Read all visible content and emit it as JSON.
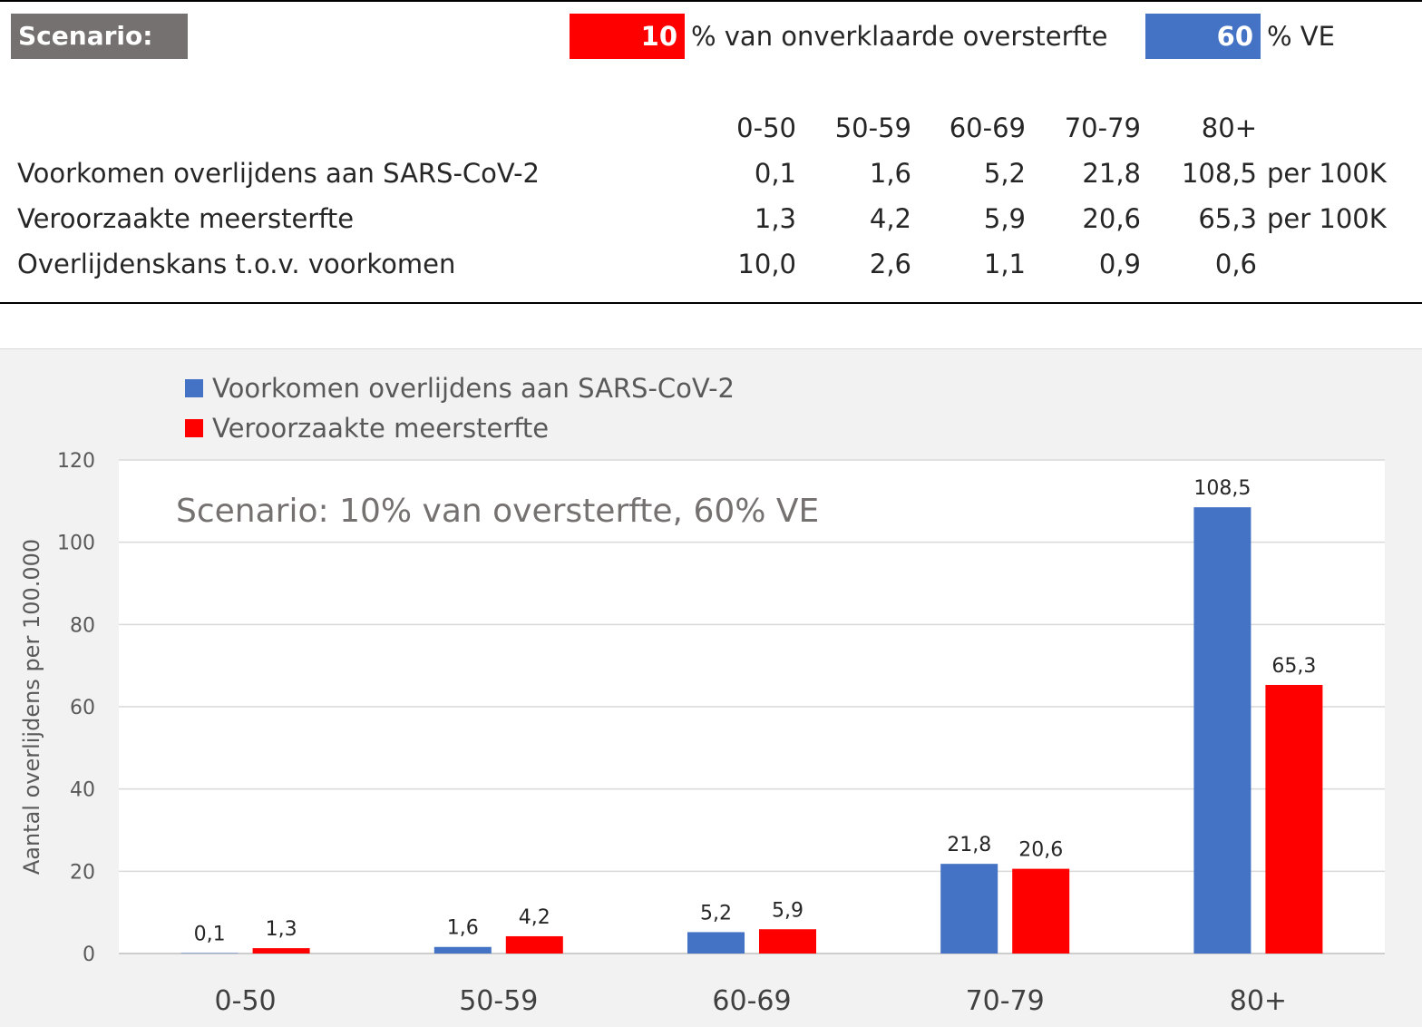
{
  "header": {
    "scenario_label": "Scenario:",
    "excess_pct_value": "10",
    "excess_pct_text": "% van onverklaarde oversterfte",
    "ve_value": "60",
    "ve_text": "% VE"
  },
  "colors": {
    "blue": "#4472c4",
    "red": "#ff0000",
    "badge": "#767171"
  },
  "table": {
    "columns": [
      "0-50",
      "50-59",
      "60-69",
      "70-79",
      "80+"
    ],
    "rows": [
      {
        "label": "Voorkomen overlijdens aan SARS-CoV-2",
        "values": [
          "0,1",
          "1,6",
          "5,2",
          "21,8",
          "108,5"
        ],
        "unit": "per 100K"
      },
      {
        "label": "Veroorzaakte meersterfte",
        "values": [
          "1,3",
          "4,2",
          "5,9",
          "20,6",
          "65,3"
        ],
        "unit": "per 100K"
      },
      {
        "label": "Overlijdenskans t.o.v. voorkomen",
        "values": [
          "10,0",
          "2,6",
          "1,1",
          "0,9",
          "0,6"
        ],
        "unit": ""
      }
    ]
  },
  "chart_data": {
    "type": "bar",
    "title": "Scenario: 10% van oversterfte,  60% VE",
    "categories": [
      "0-50",
      "50-59",
      "60-69",
      "70-79",
      "80+"
    ],
    "series": [
      {
        "name": "Voorkomen overlijdens aan SARS-CoV-2",
        "color": "#4472c4",
        "values": [
          0.1,
          1.6,
          5.2,
          21.8,
          108.5
        ],
        "labels": [
          "0,1",
          "1,6",
          "5,2",
          "21,8",
          "108,5"
        ]
      },
      {
        "name": "Veroorzaakte meersterfte",
        "color": "#ff0000",
        "values": [
          1.3,
          4.2,
          5.9,
          20.6,
          65.3
        ],
        "labels": [
          "1,3",
          "4,2",
          "5,9",
          "20,6",
          "65,3"
        ]
      }
    ],
    "ylabel": "Aantal overlijdens  per 100.000",
    "xlabel": "",
    "ylim": [
      0,
      120
    ],
    "yticks": [
      0,
      20,
      40,
      60,
      80,
      100,
      120
    ],
    "grid": true,
    "legend": "top-left"
  }
}
